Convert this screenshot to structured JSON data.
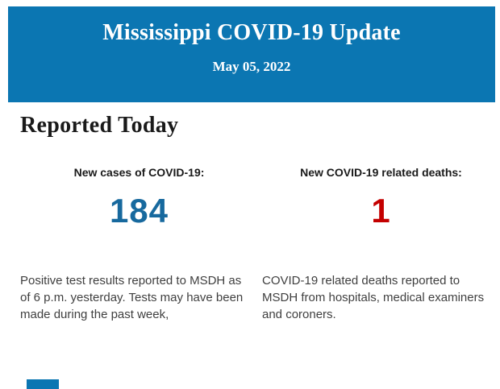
{
  "colors": {
    "banner_blue": "#0b76b2",
    "cases_blue": "#17699e",
    "deaths_red": "#c40000",
    "heading_black": "#1a1a1a",
    "body_text": "#3f3f3f"
  },
  "header": {
    "title": "Mississippi COVID-19 Update",
    "date": "May 05, 2022"
  },
  "main": {
    "section_title": "Reported Today",
    "stats": [
      {
        "label": "New cases of COVID-19:",
        "value": "184",
        "value_color": "#17699e",
        "description": "Positive test results reported to MSDH as of 6 p.m. yesterday. Tests may have been made during the past week,"
      },
      {
        "label": "New COVID-19 related deaths:",
        "value": "1",
        "value_color": "#c40000",
        "description": "COVID-19 related deaths reported to MSDH from hospitals, medical examiners and coroners."
      }
    ]
  }
}
